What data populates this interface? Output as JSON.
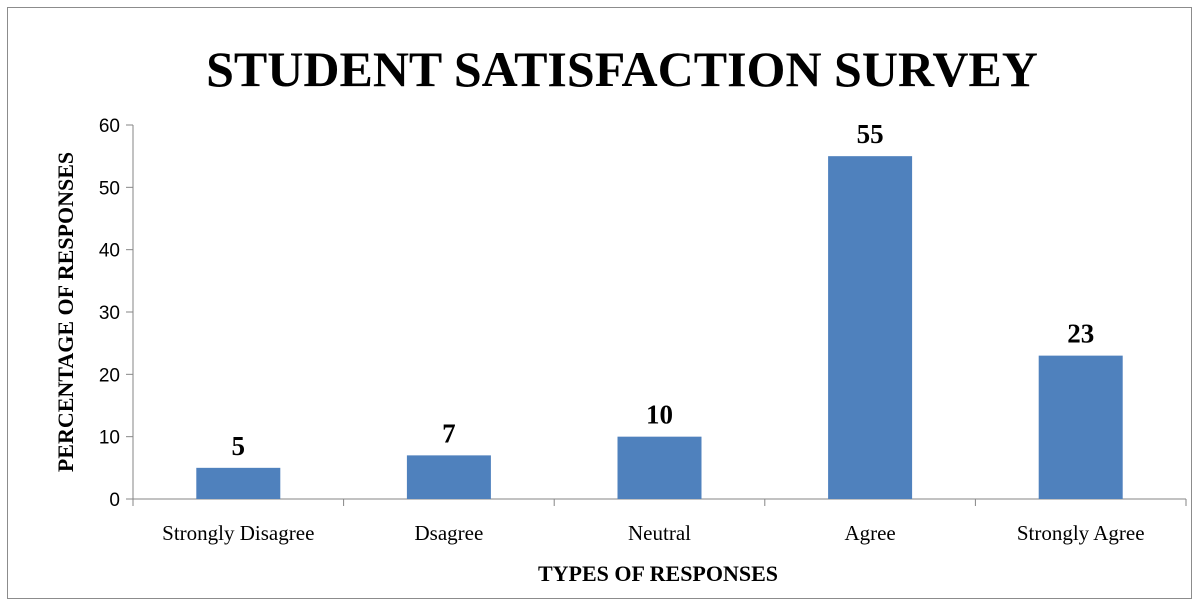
{
  "chart_data": {
    "type": "bar",
    "title": "STUDENT SATISFACTION SURVEY",
    "xlabel": "TYPES OF RESPONSES",
    "ylabel": "PERCENTAGE OF RESPONSES",
    "categories": [
      "Strongly Disagree",
      "Dsagree",
      "Neutral",
      "Agree",
      "Strongly Agree"
    ],
    "values": [
      5,
      7,
      10,
      55,
      23
    ],
    "data_labels": [
      "5",
      "7",
      "10",
      "55",
      "23"
    ],
    "ylim": [
      0,
      60
    ],
    "yticks": [
      0,
      10,
      20,
      30,
      40,
      50,
      60
    ],
    "ytick_labels": [
      "0",
      "10",
      "20",
      "30",
      "40",
      "50",
      "60"
    ],
    "grid": false,
    "legend": "none",
    "colors": {
      "bar": "#4f81bd",
      "axis": "#868686",
      "frame": "#8c8c8c"
    }
  }
}
